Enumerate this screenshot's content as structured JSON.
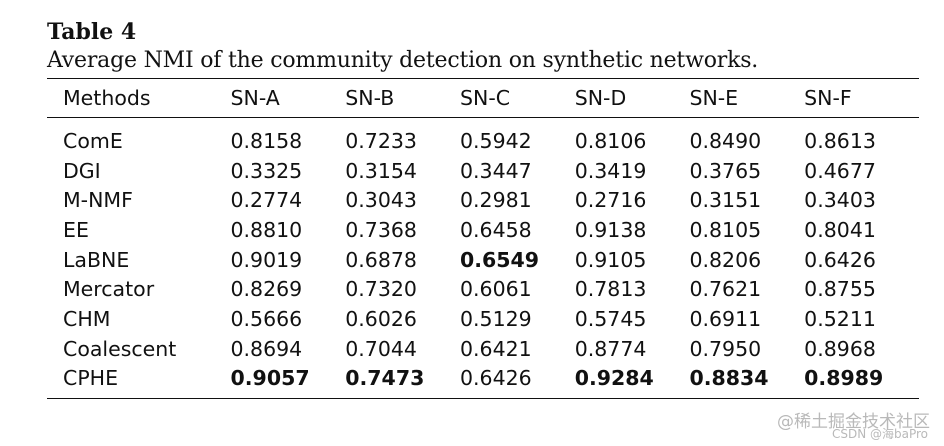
{
  "table": {
    "label": "Table 4",
    "caption": "Average NMI of the community detection on synthetic networks.",
    "headers": [
      "Methods",
      "SN-A",
      "SN-B",
      "SN-C",
      "SN-D",
      "SN-E",
      "SN-F"
    ],
    "rows": [
      {
        "method": "ComE",
        "values": [
          "0.8158",
          "0.7233",
          "0.5942",
          "0.8106",
          "0.8490",
          "0.8613"
        ],
        "bold": [
          false,
          false,
          false,
          false,
          false,
          false
        ]
      },
      {
        "method": "DGI",
        "values": [
          "0.3325",
          "0.3154",
          "0.3447",
          "0.3419",
          "0.3765",
          "0.4677"
        ],
        "bold": [
          false,
          false,
          false,
          false,
          false,
          false
        ]
      },
      {
        "method": "M-NMF",
        "values": [
          "0.2774",
          "0.3043",
          "0.2981",
          "0.2716",
          "0.3151",
          "0.3403"
        ],
        "bold": [
          false,
          false,
          false,
          false,
          false,
          false
        ]
      },
      {
        "method": "EE",
        "values": [
          "0.8810",
          "0.7368",
          "0.6458",
          "0.9138",
          "0.8105",
          "0.8041"
        ],
        "bold": [
          false,
          false,
          false,
          false,
          false,
          false
        ]
      },
      {
        "method": "LaBNE",
        "values": [
          "0.9019",
          "0.6878",
          "0.6549",
          "0.9105",
          "0.8206",
          "0.6426"
        ],
        "bold": [
          false,
          false,
          true,
          false,
          false,
          false
        ]
      },
      {
        "method": "Mercator",
        "values": [
          "0.8269",
          "0.7320",
          "0.6061",
          "0.7813",
          "0.7621",
          "0.8755"
        ],
        "bold": [
          false,
          false,
          false,
          false,
          false,
          false
        ]
      },
      {
        "method": "CHM",
        "values": [
          "0.5666",
          "0.6026",
          "0.5129",
          "0.5745",
          "0.6911",
          "0.5211"
        ],
        "bold": [
          false,
          false,
          false,
          false,
          false,
          false
        ]
      },
      {
        "method": "Coalescent",
        "values": [
          "0.8694",
          "0.7044",
          "0.6421",
          "0.8774",
          "0.7950",
          "0.8968"
        ],
        "bold": [
          false,
          false,
          false,
          false,
          false,
          false
        ]
      },
      {
        "method": "CPHE",
        "values": [
          "0.9057",
          "0.7473",
          "0.6426",
          "0.9284",
          "0.8834",
          "0.8989"
        ],
        "bold": [
          true,
          true,
          false,
          true,
          true,
          true
        ]
      }
    ]
  },
  "watermark": {
    "line1": "@稀土掘金技术社区",
    "line2": "CSDN @海baPro"
  }
}
